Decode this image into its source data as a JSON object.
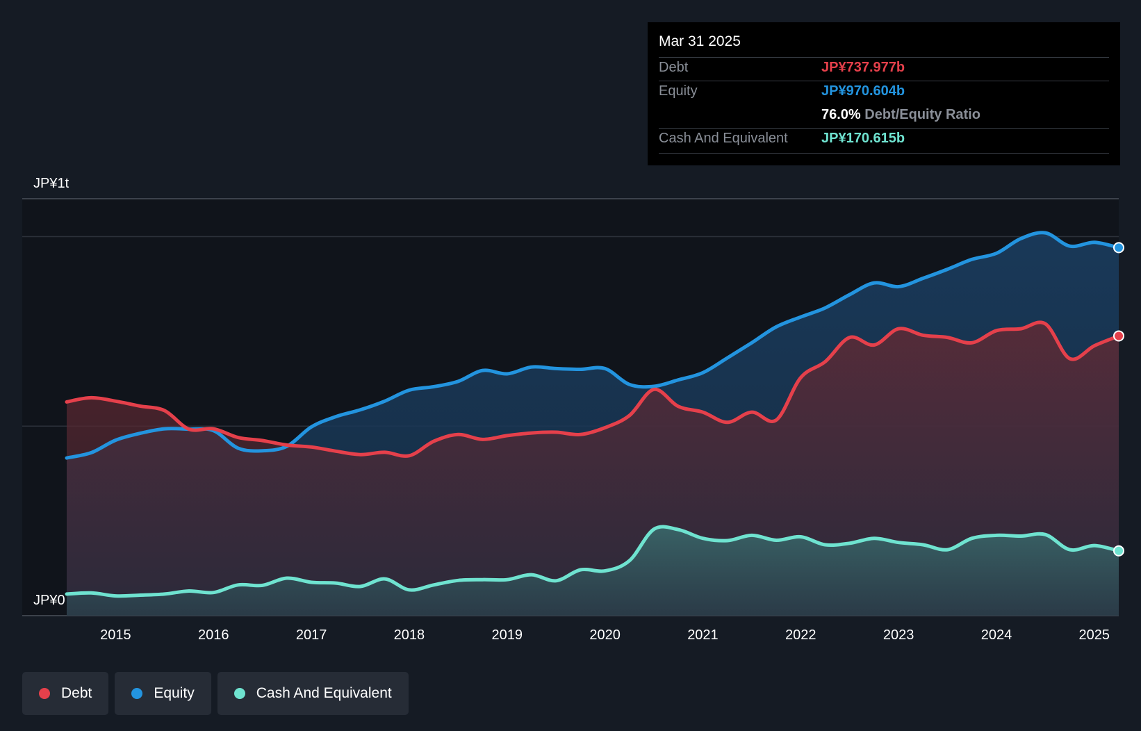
{
  "tooltip": {
    "date": "Mar 31 2025",
    "debt_label": "Debt",
    "debt_value": "JP¥737.977b",
    "equity_label": "Equity",
    "equity_value": "JP¥970.604b",
    "ratio_pct": "76.0%",
    "ratio_label": "Debt/Equity Ratio",
    "cash_label": "Cash And Equivalent",
    "cash_value": "JP¥170.615b"
  },
  "legend": {
    "debt": "Debt",
    "equity": "Equity",
    "cash": "Cash And Equivalent"
  },
  "colors": {
    "debt": "#e5404b",
    "equity": "#2394df",
    "cash": "#6fe3d0",
    "background": "#151b24"
  },
  "chart_data": {
    "type": "area",
    "title": "",
    "xlabel": "",
    "ylabel": "",
    "y_top_label": "JP¥1t",
    "y_bottom_label": "JP¥0",
    "ylim": [
      0,
      1100
    ],
    "xlim": [
      2014.5,
      2025.25
    ],
    "x_ticks": [
      "2015",
      "2016",
      "2017",
      "2018",
      "2019",
      "2020",
      "2021",
      "2022",
      "2023",
      "2024",
      "2025"
    ],
    "series": [
      {
        "name": "Debt",
        "unit": "JP¥b",
        "points": [
          [
            2014.5,
            564
          ],
          [
            2014.75,
            575
          ],
          [
            2015.0,
            566
          ],
          [
            2015.25,
            553
          ],
          [
            2015.5,
            541
          ],
          [
            2015.75,
            492
          ],
          [
            2016.0,
            493
          ],
          [
            2016.25,
            470
          ],
          [
            2016.5,
            462
          ],
          [
            2016.75,
            450
          ],
          [
            2017.0,
            445
          ],
          [
            2017.25,
            434
          ],
          [
            2017.5,
            425
          ],
          [
            2017.75,
            431
          ],
          [
            2018.0,
            422
          ],
          [
            2018.25,
            460
          ],
          [
            2018.5,
            478
          ],
          [
            2018.75,
            465
          ],
          [
            2019.0,
            475
          ],
          [
            2019.25,
            482
          ],
          [
            2019.5,
            484
          ],
          [
            2019.75,
            478
          ],
          [
            2020.0,
            496
          ],
          [
            2020.25,
            528
          ],
          [
            2020.5,
            597
          ],
          [
            2020.75,
            552
          ],
          [
            2021.0,
            537
          ],
          [
            2021.25,
            510
          ],
          [
            2021.5,
            537
          ],
          [
            2021.75,
            516
          ],
          [
            2022.0,
            628
          ],
          [
            2022.25,
            670
          ],
          [
            2022.5,
            734
          ],
          [
            2022.75,
            714
          ],
          [
            2023.0,
            757
          ],
          [
            2023.25,
            740
          ],
          [
            2023.5,
            734
          ],
          [
            2023.75,
            720
          ],
          [
            2024.0,
            752
          ],
          [
            2024.25,
            757
          ],
          [
            2024.5,
            770
          ],
          [
            2024.75,
            678
          ],
          [
            2025.0,
            712
          ],
          [
            2025.25,
            738
          ]
        ]
      },
      {
        "name": "Equity",
        "unit": "JP¥b",
        "points": [
          [
            2014.5,
            416
          ],
          [
            2014.75,
            430
          ],
          [
            2015.0,
            463
          ],
          [
            2015.25,
            481
          ],
          [
            2015.5,
            493
          ],
          [
            2015.75,
            492
          ],
          [
            2016.0,
            488
          ],
          [
            2016.25,
            442
          ],
          [
            2016.5,
            435
          ],
          [
            2016.75,
            447
          ],
          [
            2017.0,
            498
          ],
          [
            2017.25,
            525
          ],
          [
            2017.5,
            543
          ],
          [
            2017.75,
            566
          ],
          [
            2018.0,
            595
          ],
          [
            2018.25,
            604
          ],
          [
            2018.5,
            618
          ],
          [
            2018.75,
            647
          ],
          [
            2019.0,
            638
          ],
          [
            2019.25,
            656
          ],
          [
            2019.5,
            652
          ],
          [
            2019.75,
            650
          ],
          [
            2020.0,
            652
          ],
          [
            2020.25,
            610
          ],
          [
            2020.5,
            605
          ],
          [
            2020.75,
            622
          ],
          [
            2021.0,
            641
          ],
          [
            2021.25,
            680
          ],
          [
            2021.5,
            720
          ],
          [
            2021.75,
            762
          ],
          [
            2022.0,
            788
          ],
          [
            2022.25,
            812
          ],
          [
            2022.5,
            847
          ],
          [
            2022.75,
            878
          ],
          [
            2023.0,
            868
          ],
          [
            2023.25,
            890
          ],
          [
            2023.5,
            914
          ],
          [
            2023.75,
            940
          ],
          [
            2024.0,
            956
          ],
          [
            2024.25,
            995
          ],
          [
            2024.5,
            1010
          ],
          [
            2024.75,
            975
          ],
          [
            2025.0,
            985
          ],
          [
            2025.25,
            971
          ]
        ]
      },
      {
        "name": "Cash And Equivalent",
        "unit": "JP¥b",
        "points": [
          [
            2014.5,
            57
          ],
          [
            2014.75,
            60
          ],
          [
            2015.0,
            52
          ],
          [
            2015.25,
            54
          ],
          [
            2015.5,
            57
          ],
          [
            2015.75,
            65
          ],
          [
            2016.0,
            61
          ],
          [
            2016.25,
            81
          ],
          [
            2016.5,
            80
          ],
          [
            2016.75,
            99
          ],
          [
            2017.0,
            88
          ],
          [
            2017.25,
            86
          ],
          [
            2017.5,
            77
          ],
          [
            2017.75,
            97
          ],
          [
            2018.0,
            68
          ],
          [
            2018.25,
            81
          ],
          [
            2018.5,
            93
          ],
          [
            2018.75,
            95
          ],
          [
            2019.0,
            95
          ],
          [
            2019.25,
            108
          ],
          [
            2019.5,
            92
          ],
          [
            2019.75,
            121
          ],
          [
            2020.0,
            118
          ],
          [
            2020.25,
            145
          ],
          [
            2020.5,
            228
          ],
          [
            2020.75,
            227
          ],
          [
            2021.0,
            204
          ],
          [
            2021.25,
            198
          ],
          [
            2021.5,
            212
          ],
          [
            2021.75,
            199
          ],
          [
            2022.0,
            208
          ],
          [
            2022.25,
            187
          ],
          [
            2022.5,
            191
          ],
          [
            2022.75,
            204
          ],
          [
            2023.0,
            193
          ],
          [
            2023.25,
            187
          ],
          [
            2023.5,
            174
          ],
          [
            2023.75,
            204
          ],
          [
            2024.0,
            212
          ],
          [
            2024.25,
            210
          ],
          [
            2024.5,
            214
          ],
          [
            2024.75,
            174
          ],
          [
            2025.0,
            185
          ],
          [
            2025.25,
            171
          ]
        ]
      }
    ]
  }
}
